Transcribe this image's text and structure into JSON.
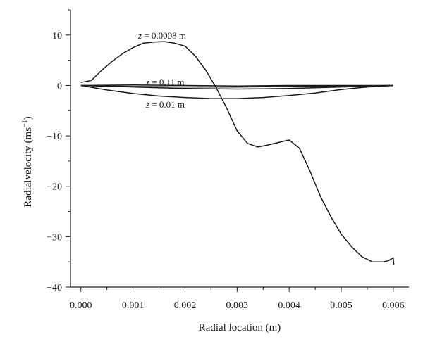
{
  "chart_data": {
    "type": "line",
    "title": "",
    "xlabel": "Radial location (m)",
    "ylabel_main": "Radialvelocity (ms",
    "ylabel_sup": "−1",
    "ylabel_close": ")",
    "xlim": [
      -0.0002,
      0.0063
    ],
    "ylim": [
      -40,
      15
    ],
    "xticks": [
      0.0,
      0.001,
      0.002,
      0.003,
      0.004,
      0.005,
      0.006
    ],
    "xtick_labels": [
      "0.000",
      "0.001",
      "0.002",
      "0.003",
      "0.004",
      "0.005",
      "0.006"
    ],
    "yticks": [
      10,
      0,
      -10,
      -20,
      -30,
      -40
    ],
    "ytick_labels": [
      "10",
      "0",
      "−10",
      "−20",
      "−30",
      "−40"
    ],
    "grid": false,
    "line_color": "#1a1a1a",
    "series": [
      {
        "name": "z = 0.0008 m",
        "annotation": {
          "var": "z",
          "rest": " = 0.0008 m"
        },
        "x": [
          0.0,
          0.0002,
          0.0004,
          0.0006,
          0.0008,
          0.001,
          0.0012,
          0.0014,
          0.0016,
          0.0018,
          0.002,
          0.0022,
          0.0024,
          0.0026,
          0.0028,
          0.003,
          0.0032,
          0.0034,
          0.0036,
          0.0038,
          0.004,
          0.0042,
          0.0044,
          0.0046,
          0.0048,
          0.005,
          0.0052,
          0.0054,
          0.0056,
          0.0058,
          0.0059,
          0.006,
          0.00601
        ],
        "values": [
          0.6,
          1.0,
          3.0,
          4.8,
          6.3,
          7.5,
          8.4,
          8.6,
          8.7,
          8.4,
          7.8,
          5.8,
          3.0,
          -0.5,
          -4.5,
          -9.0,
          -11.5,
          -12.2,
          -11.8,
          -11.3,
          -10.8,
          -12.5,
          -17.0,
          -22.0,
          -26.0,
          -29.5,
          -32.0,
          -34.0,
          -35.0,
          -35.0,
          -34.8,
          -34.2,
          -35.5
        ]
      },
      {
        "name": "z = 0.11 m",
        "annotation": {
          "var": "z",
          "rest": " = 0.11 m"
        },
        "x": [
          0.0,
          0.001,
          0.002,
          0.003,
          0.004,
          0.005,
          0.006
        ],
        "values": [
          0.0,
          -0.2,
          -0.3,
          -0.3,
          -0.2,
          -0.1,
          0.0
        ]
      },
      {
        "name": "z = 0.01 m",
        "annotation": {
          "var": "z",
          "rest": " = 0.01 m"
        },
        "x": [
          0.0,
          0.0005,
          0.001,
          0.0015,
          0.002,
          0.0025,
          0.003,
          0.0035,
          0.004,
          0.0045,
          0.005,
          0.0055,
          0.006
        ],
        "values": [
          0.0,
          -0.9,
          -1.6,
          -2.1,
          -2.4,
          -2.6,
          -2.6,
          -2.4,
          -2.0,
          -1.5,
          -0.8,
          -0.3,
          0.0
        ]
      },
      {
        "name": "",
        "x": [
          0.0,
          0.001,
          0.002,
          0.003,
          0.004,
          0.005,
          0.006
        ],
        "values": [
          0.0,
          -0.3,
          -0.6,
          -0.7,
          -0.6,
          -0.3,
          0.0
        ]
      },
      {
        "name": "",
        "x": [
          0.0,
          0.001,
          0.002,
          0.003,
          0.004,
          0.005,
          0.006
        ],
        "values": [
          0.0,
          0.1,
          0.0,
          -0.1,
          0.0,
          0.0,
          0.0
        ]
      }
    ]
  }
}
